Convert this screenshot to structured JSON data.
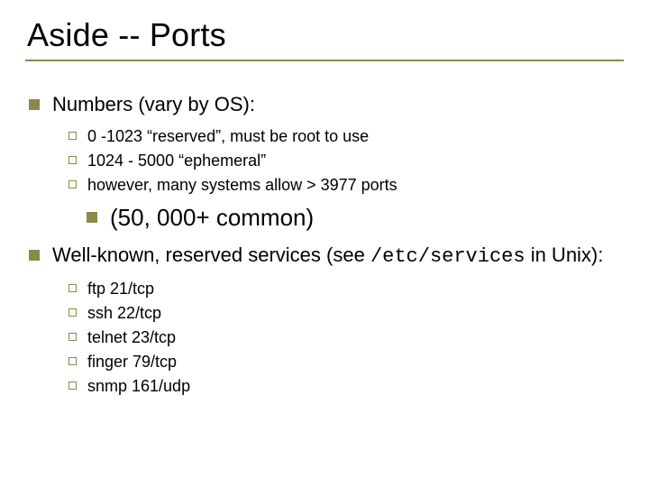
{
  "colors": {
    "accent": "#8a8a4a",
    "text": "#000000",
    "background": "#ffffff"
  },
  "title": "Aside -- Ports",
  "section1": {
    "heading": "Numbers (vary by OS):",
    "items": [
      "0 -1023 “reserved”, must be root to use",
      "1024 - 5000 “ephemeral”",
      "however, many systems allow > 3977 ports"
    ],
    "sub_heading": "(50, 000+ common)"
  },
  "section2": {
    "heading_pre": "Well-known, reserved services (see ",
    "heading_code": "/etc/services",
    "heading_post": " in Unix):",
    "items": [
      "ftp 21/tcp",
      "ssh 22/tcp",
      "telnet 23/tcp",
      "finger 79/tcp",
      "snmp 161/udp"
    ]
  }
}
